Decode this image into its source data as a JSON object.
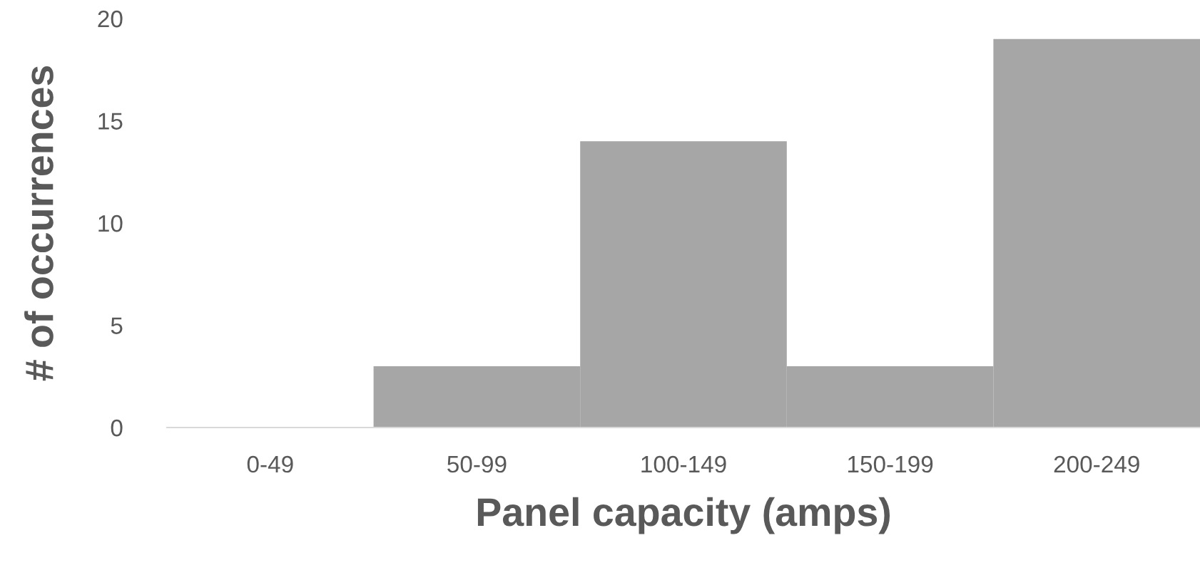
{
  "chart_data": {
    "type": "bar",
    "xlabel": "Panel capacity (amps)",
    "ylabel": "# of occurrences",
    "categories": [
      "0-49",
      "50-99",
      "100-149",
      "150-199",
      "200-249"
    ],
    "values": [
      0,
      3,
      14,
      3,
      19
    ],
    "color": "#a6a6a6",
    "ylim": [
      0,
      20
    ],
    "yticks": [
      0,
      5,
      10,
      15,
      20
    ],
    "grid": false,
    "legend": false
  }
}
